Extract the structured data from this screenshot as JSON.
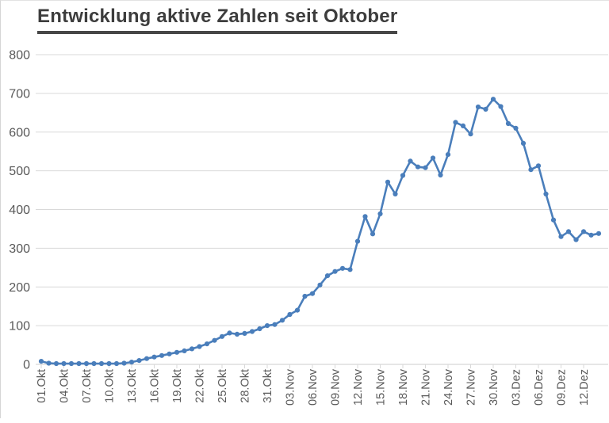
{
  "title": "Entwicklung aktive Zahlen seit Oktober",
  "colors": {
    "line": "#4a7ebb",
    "marker": "#4a7ebb",
    "grid": "#d9d9d9",
    "axis_line": "#cdcdcd",
    "axis_text": "#595959",
    "title_text": "#3d3d3d"
  },
  "chart_data": {
    "type": "line",
    "title": "Entwicklung aktive Zahlen seit Oktober",
    "xlabel": "",
    "ylabel": "",
    "ylim": [
      0,
      800
    ],
    "grid": true,
    "legend": "none",
    "marker": "circle",
    "y_ticks": [
      0,
      100,
      200,
      300,
      400,
      500,
      600,
      700,
      800
    ],
    "x_tick_labels": [
      "01.Okt",
      "04.Okt",
      "07.Okt",
      "10.Okt",
      "13.Okt",
      "16.Okt",
      "19.Okt",
      "22.Okt",
      "25.Okt",
      "28.Okt",
      "31.Okt",
      "03.Nov",
      "06.Nov",
      "09.Nov",
      "12.Nov",
      "15.Nov",
      "18.Nov",
      "21.Nov",
      "24.Nov",
      "27.Nov",
      "30.Nov",
      "03.Dez",
      "06.Dez",
      "09.Dez",
      "12.Dez"
    ],
    "x_label_every_n_points": 3,
    "dates": [
      "01.Okt",
      "02.Okt",
      "03.Okt",
      "04.Okt",
      "05.Okt",
      "06.Okt",
      "07.Okt",
      "08.Okt",
      "09.Okt",
      "10.Okt",
      "11.Okt",
      "12.Okt",
      "13.Okt",
      "14.Okt",
      "15.Okt",
      "16.Okt",
      "17.Okt",
      "18.Okt",
      "19.Okt",
      "20.Okt",
      "21.Okt",
      "22.Okt",
      "23.Okt",
      "24.Okt",
      "25.Okt",
      "26.Okt",
      "27.Okt",
      "28.Okt",
      "29.Okt",
      "30.Okt",
      "31.Okt",
      "01.Nov",
      "02.Nov",
      "03.Nov",
      "04.Nov",
      "05.Nov",
      "06.Nov",
      "07.Nov",
      "08.Nov",
      "09.Nov",
      "10.Nov",
      "11.Nov",
      "12.Nov",
      "13.Nov",
      "14.Nov",
      "15.Nov",
      "16.Nov",
      "17.Nov",
      "18.Nov",
      "19.Nov",
      "20.Nov",
      "21.Nov",
      "22.Nov",
      "23.Nov",
      "24.Nov",
      "25.Nov",
      "26.Nov",
      "27.Nov",
      "28.Nov",
      "29.Nov",
      "30.Nov",
      "01.Dez",
      "02.Dez",
      "03.Dez",
      "04.Dez",
      "05.Dez",
      "06.Dez",
      "07.Dez",
      "08.Dez",
      "09.Dez",
      "10.Dez",
      "11.Dez",
      "12.Dez",
      "13.Dez",
      "14.Dez"
    ],
    "values": [
      8,
      3,
      2,
      2,
      2,
      2,
      2,
      2,
      2,
      2,
      2,
      3,
      6,
      10,
      15,
      19,
      23,
      27,
      31,
      35,
      40,
      46,
      53,
      62,
      72,
      81,
      78,
      80,
      85,
      92,
      100,
      103,
      114,
      129,
      140,
      176,
      183,
      205,
      229,
      240,
      248,
      245,
      318,
      382,
      337,
      389,
      471,
      440,
      488,
      525,
      510,
      508,
      533,
      489,
      542,
      625,
      616,
      595,
      665,
      659,
      685,
      666,
      622,
      610,
      571,
      503,
      513,
      440,
      373,
      330,
      343,
      322,
      343,
      334,
      338
    ]
  }
}
